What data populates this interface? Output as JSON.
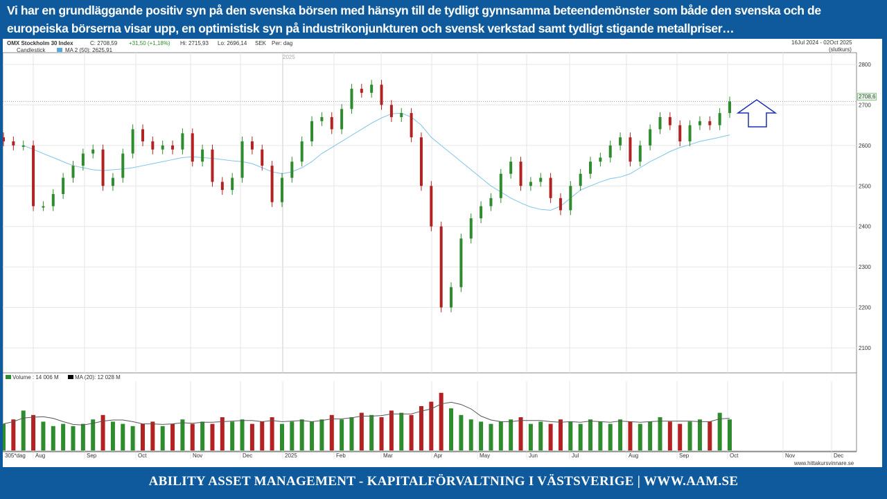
{
  "headline": "Vi har en grundläggande positiv syn på den svenska börsen med hänsyn till de tydligt gynnsamma beteendemönster som både den svenska och de europeiska börserna visar upp, en optimistisk syn på industrikonjunkturen och svensk verkstad samt tydligt stigande metallpriser…",
  "footer": "ABILITY ASSET MANAGEMENT -  KAPITALFÖRVALTNING I VÄSTSVERIGE   |   WWW.AAM.SE",
  "chart_header": {
    "name": "OMX Stockholm 30 Index",
    "close": "C: 2708,59",
    "change": "+31,50 (+1,18%)",
    "high": "Hi: 2715,93",
    "low": "Lo: 2696,14",
    "currency": "SEK",
    "period": "Per: dag",
    "type": "Candlestick",
    "ma_label": "MA 2 (50): 2625,91",
    "range": "16Jul 2024 - 02Oct 2025",
    "range_note": "(slutkurs)",
    "last_price_tag": "2708,6",
    "volume_label": "Volume : 14 006 M",
    "volume_ma_label": "MA (20): 12 028 M",
    "days_label": "305*dag",
    "source": "www.hittakursvinnare.se",
    "year_marker": "2025"
  },
  "colors": {
    "up": "#2e8b2e",
    "down": "#b22222",
    "ma": "#7ec4e8",
    "banner": "#0e5a9c",
    "arrow": "#1a2fb0"
  },
  "chart_data": {
    "type": "candlestick",
    "title": "OMX Stockholm 30 Index",
    "ylim": [
      2050,
      2830
    ],
    "yticks": [
      2100,
      2200,
      2300,
      2400,
      2500,
      2600,
      2700,
      2800
    ],
    "xticks": [
      "Aug",
      "Sep",
      "Oct",
      "Nov",
      "Dec",
      "2025",
      "Feb",
      "Mar",
      "Apr",
      "May",
      "Jun",
      "Jul",
      "Aug",
      "Sep",
      "Oct",
      "Nov",
      "Dec"
    ],
    "close": [
      2610,
      2600,
      2600,
      2450,
      2450,
      2480,
      2520,
      2550,
      2580,
      2590,
      2500,
      2520,
      2580,
      2640,
      2610,
      2590,
      2600,
      2590,
      2630,
      2560,
      2590,
      2510,
      2490,
      2520,
      2610,
      2590,
      2550,
      2460,
      2520,
      2560,
      2610,
      2660,
      2670,
      2640,
      2690,
      2740,
      2730,
      2750,
      2700,
      2670,
      2680,
      2620,
      2500,
      2400,
      2200,
      2250,
      2370,
      2420,
      2450,
      2470,
      2530,
      2560,
      2500,
      2510,
      2520,
      2470,
      2440,
      2500,
      2530,
      2560,
      2570,
      2600,
      2620,
      2560,
      2600,
      2640,
      2670,
      2650,
      2610,
      2650,
      2660,
      2650,
      2680,
      2708.6
    ],
    "ma50": [
      null,
      null,
      2600,
      2590,
      2580,
      2570,
      2560,
      2550,
      2545,
      2540,
      2538,
      2540,
      2542,
      2545,
      2550,
      2555,
      2560,
      2565,
      2570,
      2572,
      2570,
      2568,
      2565,
      2562,
      2560,
      2555,
      2545,
      2535,
      2530,
      2535,
      2545,
      2560,
      2580,
      2595,
      2610,
      2625,
      2640,
      2655,
      2668,
      2678,
      2680,
      2670,
      2650,
      2620,
      2600,
      2580,
      2560,
      2540,
      2520,
      2500,
      2485,
      2470,
      2458,
      2448,
      2442,
      2440,
      2450,
      2470,
      2490,
      2500,
      2510,
      2518,
      2522,
      2530,
      2545,
      2560,
      2572,
      2585,
      2595,
      2602,
      2610,
      2615,
      2620,
      2626
    ],
    "volume_ma20_M": 12028,
    "volume_M": [
      12,
      14,
      18,
      16,
      13,
      11,
      12,
      11,
      12,
      14,
      16,
      13,
      12,
      11,
      12,
      13,
      11,
      12,
      14,
      12,
      13,
      12,
      15,
      13,
      14,
      12,
      13,
      15,
      12,
      13,
      14,
      13,
      14,
      16,
      14,
      15,
      17,
      16,
      15,
      18,
      17,
      16,
      20,
      22,
      26,
      19,
      16,
      14,
      13,
      12,
      13,
      14,
      15,
      12,
      13,
      12,
      14,
      13,
      12,
      14,
      13,
      12,
      14,
      13,
      12,
      13,
      15,
      13,
      12,
      13,
      14,
      13,
      17,
      14
    ]
  }
}
